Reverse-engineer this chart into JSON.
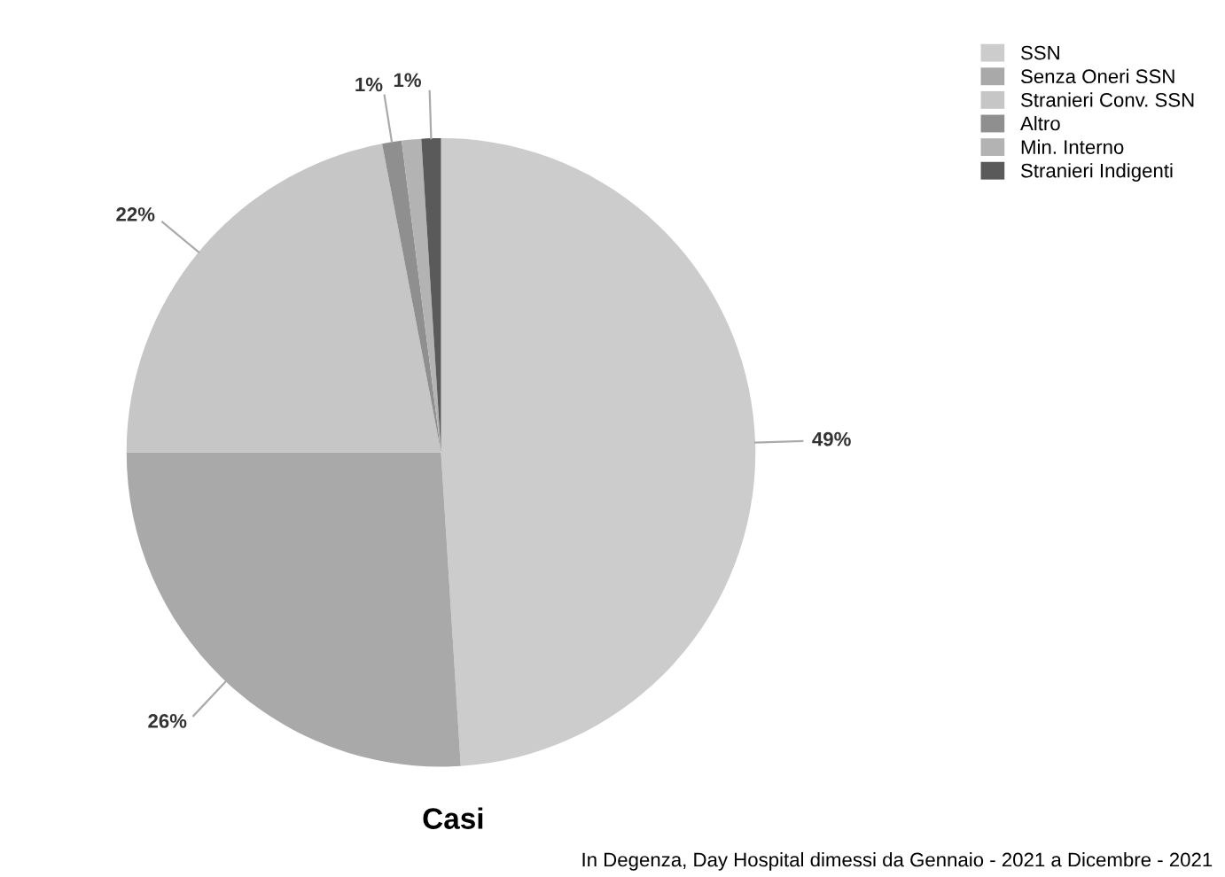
{
  "chart_data": {
    "type": "pie",
    "title": "Casi",
    "subtitle": "In Degenza, Day Hospital dimessi da Gennaio - 2021 a Dicembre - 2021",
    "categories": [
      "SSN",
      "Senza Oneri SSN",
      "Stranieri Conv. SSN",
      "Altro",
      "Min. Interno",
      "Stranieri Indigenti"
    ],
    "values": [
      49,
      26,
      22,
      1,
      1,
      1
    ],
    "value_labels": [
      "49%",
      "26%",
      "22%",
      "1%",
      null,
      "1%"
    ],
    "colors": [
      "#cccccc",
      "#a9a9a9",
      "#c6c6c6",
      "#8f8f8f",
      "#b3b3b3",
      "#5a5a5a"
    ],
    "legend": "top right"
  }
}
